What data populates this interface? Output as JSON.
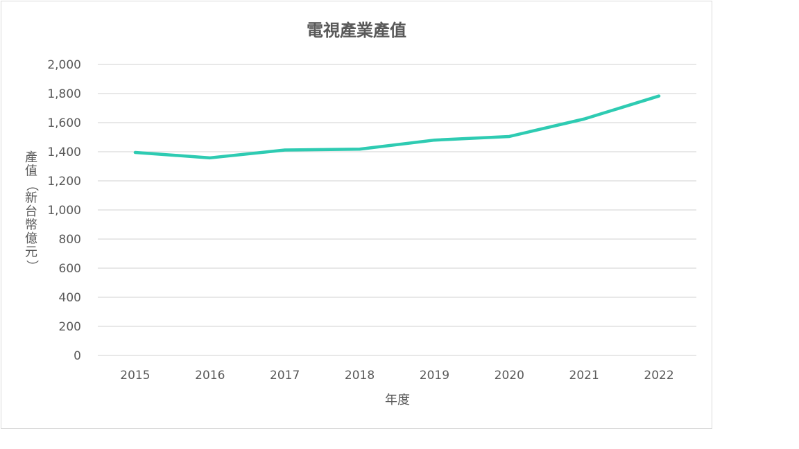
{
  "chart_data": {
    "type": "line",
    "title": "電視產業產值",
    "xlabel": "年度",
    "ylabel": "產值（新台幣億元）",
    "categories": [
      "2015",
      "2016",
      "2017",
      "2018",
      "2019",
      "2020",
      "2021",
      "2022"
    ],
    "series": [
      {
        "values": [
          1395,
          1358,
          1412,
          1418,
          1480,
          1505,
          1625,
          1783
        ]
      }
    ],
    "ylim": [
      0,
      2000
    ],
    "yticks": [
      0,
      200,
      400,
      600,
      800,
      1000,
      1200,
      1400,
      1600,
      1800,
      2000
    ],
    "ytick_labels": [
      "0",
      "200",
      "400",
      "600",
      "800",
      "1,000",
      "1,200",
      "1,400",
      "1,600",
      "1,800",
      "2,000"
    ],
    "grid": true,
    "legend": "none",
    "line_color": "#2ecbb2"
  }
}
